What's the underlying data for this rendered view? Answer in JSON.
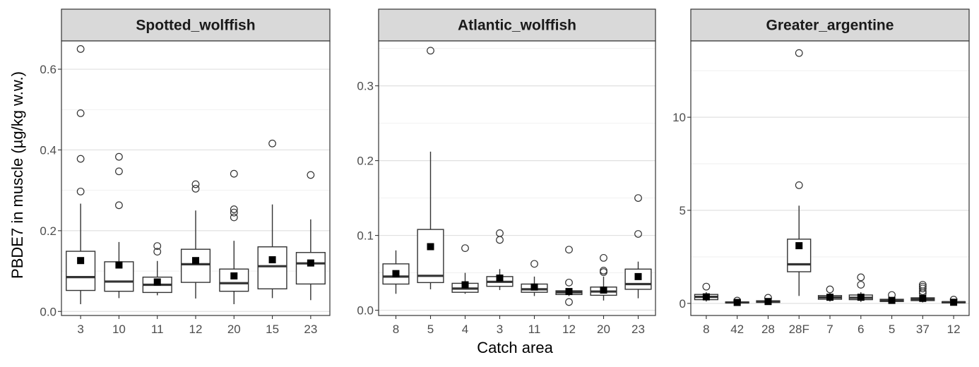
{
  "figure": {
    "ylabel": "PBDE7 in muscle (µg/kg w.w.)",
    "xlabel": "Catch area"
  },
  "chart_data": [
    {
      "type": "boxplot",
      "title": "Spotted_wolffish",
      "xlabel": "Catch area",
      "ylabel": "PBDE7 in muscle (µg/kg w.w.)",
      "ylim": [
        -0.01,
        0.67
      ],
      "yticks": [
        0.0,
        0.2,
        0.4,
        0.6
      ],
      "ytick_labels": [
        "0.0",
        "0.2",
        "0.4",
        "0.6"
      ],
      "categories": [
        "3",
        "10",
        "11",
        "12",
        "20",
        "15",
        "23"
      ],
      "boxes": [
        {
          "q1": 0.052,
          "median": 0.085,
          "q3": 0.149,
          "whisker_low": 0.018,
          "whisker_high": 0.267,
          "mean": 0.126,
          "outliers": [
            0.297,
            0.378,
            0.491,
            0.65
          ]
        },
        {
          "q1": 0.05,
          "median": 0.074,
          "q3": 0.123,
          "whisker_low": 0.033,
          "whisker_high": 0.172,
          "mean": 0.115,
          "outliers": [
            0.263,
            0.347,
            0.383
          ]
        },
        {
          "q1": 0.047,
          "median": 0.066,
          "q3": 0.085,
          "whisker_low": 0.04,
          "whisker_high": 0.125,
          "mean": 0.073,
          "outliers": [
            0.148,
            0.162
          ]
        },
        {
          "q1": 0.072,
          "median": 0.117,
          "q3": 0.154,
          "whisker_low": 0.032,
          "whisker_high": 0.25,
          "mean": 0.126,
          "outliers": [
            0.304,
            0.315
          ]
        },
        {
          "q1": 0.05,
          "median": 0.07,
          "q3": 0.105,
          "whisker_low": 0.018,
          "whisker_high": 0.175,
          "mean": 0.088,
          "outliers": [
            0.233,
            0.245,
            0.253,
            0.341
          ]
        },
        {
          "q1": 0.056,
          "median": 0.112,
          "q3": 0.16,
          "whisker_low": 0.033,
          "whisker_high": 0.265,
          "mean": 0.128,
          "outliers": [
            0.416
          ]
        },
        {
          "q1": 0.068,
          "median": 0.119,
          "q3": 0.146,
          "whisker_low": 0.028,
          "whisker_high": 0.228,
          "mean": 0.12,
          "outliers": [
            0.338
          ]
        }
      ]
    },
    {
      "type": "boxplot",
      "title": "Atlantic_wolffish",
      "xlabel": "Catch area",
      "ylabel": "PBDE7 in muscle (µg/kg w.w.)",
      "ylim": [
        -0.007,
        0.36
      ],
      "yticks": [
        0.0,
        0.1,
        0.2,
        0.3
      ],
      "ytick_labels": [
        "0.0",
        "0.1",
        "0.2",
        "0.3"
      ],
      "categories": [
        "8",
        "5",
        "4",
        "3",
        "11",
        "12",
        "20",
        "23"
      ],
      "boxes": [
        {
          "q1": 0.035,
          "median": 0.045,
          "q3": 0.062,
          "whisker_low": 0.022,
          "whisker_high": 0.08,
          "mean": 0.049,
          "outliers": []
        },
        {
          "q1": 0.037,
          "median": 0.046,
          "q3": 0.108,
          "whisker_low": 0.028,
          "whisker_high": 0.212,
          "mean": 0.085,
          "outliers": [
            0.347
          ]
        },
        {
          "q1": 0.024,
          "median": 0.029,
          "q3": 0.036,
          "whisker_low": 0.022,
          "whisker_high": 0.05,
          "mean": 0.034,
          "outliers": [
            0.083
          ]
        },
        {
          "q1": 0.032,
          "median": 0.038,
          "q3": 0.045,
          "whisker_low": 0.027,
          "whisker_high": 0.055,
          "mean": 0.043,
          "outliers": [
            0.094,
            0.103
          ]
        },
        {
          "q1": 0.024,
          "median": 0.028,
          "q3": 0.035,
          "whisker_low": 0.019,
          "whisker_high": 0.045,
          "mean": 0.031,
          "outliers": [
            0.062
          ]
        },
        {
          "q1": 0.021,
          "median": 0.024,
          "q3": 0.026,
          "whisker_low": 0.019,
          "whisker_high": 0.028,
          "mean": 0.025,
          "outliers": [
            0.011,
            0.037,
            0.081
          ]
        },
        {
          "q1": 0.02,
          "median": 0.025,
          "q3": 0.031,
          "whisker_low": 0.013,
          "whisker_high": 0.045,
          "mean": 0.027,
          "outliers": [
            0.051,
            0.053,
            0.07
          ]
        },
        {
          "q1": 0.028,
          "median": 0.035,
          "q3": 0.055,
          "whisker_low": 0.016,
          "whisker_high": 0.065,
          "mean": 0.045,
          "outliers": [
            0.102,
            0.15
          ]
        }
      ]
    },
    {
      "type": "boxplot",
      "title": "Greater_argentine",
      "xlabel": "Catch area",
      "ylabel": "PBDE7 in muscle (µg/kg w.w.)",
      "ylim": [
        -0.65,
        14.1
      ],
      "yticks": [
        0,
        5,
        10
      ],
      "ytick_labels": [
        "0",
        "5",
        "10"
      ],
      "categories": [
        "8",
        "42",
        "28",
        "28F",
        "7",
        "6",
        "5",
        "37",
        "12"
      ],
      "boxes": [
        {
          "q1": 0.2,
          "median": 0.35,
          "q3": 0.48,
          "whisker_low": 0.1,
          "whisker_high": 0.6,
          "mean": 0.35,
          "outliers": [
            0.9
          ]
        },
        {
          "q1": 0.02,
          "median": 0.05,
          "q3": 0.08,
          "whisker_low": 0.0,
          "whisker_high": 0.12,
          "mean": 0.05,
          "outliers": [
            0.15
          ]
        },
        {
          "q1": 0.05,
          "median": 0.1,
          "q3": 0.14,
          "whisker_low": 0.02,
          "whisker_high": 0.2,
          "mean": 0.1,
          "outliers": [
            0.3
          ]
        },
        {
          "q1": 1.7,
          "median": 2.1,
          "q3": 3.45,
          "whisker_low": 0.4,
          "whisker_high": 5.25,
          "mean": 3.1,
          "outliers": [
            6.35,
            13.45
          ]
        },
        {
          "q1": 0.22,
          "median": 0.32,
          "q3": 0.42,
          "whisker_low": 0.1,
          "whisker_high": 0.55,
          "mean": 0.33,
          "outliers": [
            0.75
          ]
        },
        {
          "q1": 0.2,
          "median": 0.3,
          "q3": 0.45,
          "whisker_low": 0.08,
          "whisker_high": 0.6,
          "mean": 0.33,
          "outliers": [
            1.0,
            1.4
          ]
        },
        {
          "q1": 0.1,
          "median": 0.16,
          "q3": 0.22,
          "whisker_low": 0.04,
          "whisker_high": 0.3,
          "mean": 0.16,
          "outliers": [
            0.45
          ]
        },
        {
          "q1": 0.15,
          "median": 0.22,
          "q3": 0.3,
          "whisker_low": 0.05,
          "whisker_high": 0.4,
          "mean": 0.27,
          "outliers": [
            0.55,
            0.65,
            0.8,
            0.9,
            1.0
          ]
        },
        {
          "q1": 0.03,
          "median": 0.06,
          "q3": 0.09,
          "whisker_low": 0.01,
          "whisker_high": 0.12,
          "mean": 0.06,
          "outliers": [
            0.2
          ]
        }
      ]
    }
  ]
}
